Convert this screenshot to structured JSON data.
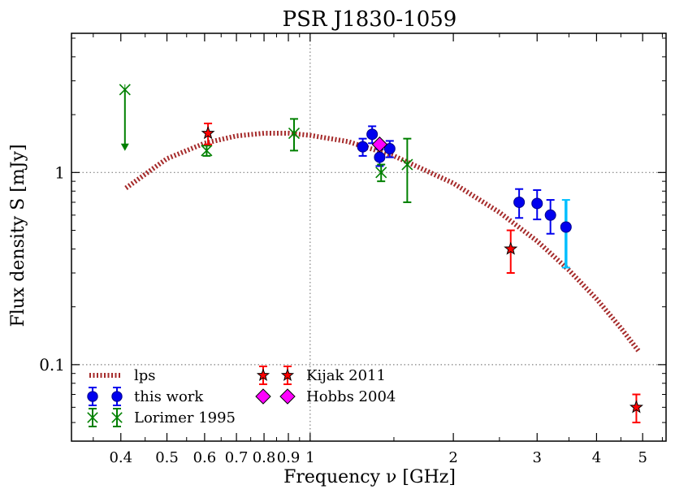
{
  "chart_data": {
    "type": "scatter",
    "title": "PSR J1830-1059",
    "xlabel": "Frequency ν [GHz]",
    "ylabel": "Flux density S [mJy]",
    "xscale": "log",
    "yscale": "log",
    "xlim": [
      0.315,
      5.6
    ],
    "ylim": [
      0.04,
      5.3
    ],
    "x_ticks": [
      {
        "value": 0.4,
        "label": "0.4"
      },
      {
        "value": 0.5,
        "label": "0.5"
      },
      {
        "value": 0.6,
        "label": "0.6"
      },
      {
        "value": 0.7,
        "label": "0.7"
      },
      {
        "value": 0.8,
        "label": "0.8"
      },
      {
        "value": 0.9,
        "label": "0.9"
      },
      {
        "value": 1,
        "label": "1"
      },
      {
        "value": 2,
        "label": "2"
      },
      {
        "value": 3,
        "label": "3"
      },
      {
        "value": 4,
        "label": "4"
      },
      {
        "value": 5,
        "label": "5"
      }
    ],
    "y_ticks": [
      {
        "value": 0.1,
        "label": "0.1"
      },
      {
        "value": 1,
        "label": "1"
      }
    ],
    "reference_lines": {
      "x": 1,
      "y": [
        0.1,
        1
      ]
    },
    "fit_curve": {
      "name": "lps",
      "color": "#a52a2a",
      "x": [
        0.41,
        0.5,
        0.6,
        0.7,
        0.8,
        0.9,
        1.0,
        1.2,
        1.5,
        2.0,
        2.5,
        3.0,
        3.5,
        4.0,
        4.5,
        4.9
      ],
      "y": [
        0.83,
        1.18,
        1.42,
        1.55,
        1.6,
        1.6,
        1.56,
        1.45,
        1.22,
        0.88,
        0.62,
        0.44,
        0.31,
        0.22,
        0.155,
        0.118
      ]
    },
    "series": [
      {
        "name": "this work",
        "marker": "circle",
        "color": "#0000ee",
        "points": [
          {
            "x": 1.29,
            "y": 1.36,
            "lo": 1.22,
            "hi": 1.5
          },
          {
            "x": 1.35,
            "y": 1.58,
            "lo": 1.42,
            "hi": 1.74
          },
          {
            "x": 1.4,
            "y": 1.2,
            "lo": 1.08,
            "hi": 1.32
          },
          {
            "x": 1.47,
            "y": 1.33,
            "lo": 1.2,
            "hi": 1.46
          },
          {
            "x": 2.75,
            "y": 0.7,
            "lo": 0.58,
            "hi": 0.82
          },
          {
            "x": 3.0,
            "y": 0.69,
            "lo": 0.57,
            "hi": 0.81
          },
          {
            "x": 3.2,
            "y": 0.6,
            "lo": 0.48,
            "hi": 0.72
          },
          {
            "x": 3.45,
            "y": 0.52,
            "lo": 0.32,
            "hi": 0.72,
            "err_color": "#00bfff"
          }
        ]
      },
      {
        "name": "Lorimer 1995",
        "marker": "x",
        "color": "#008000",
        "points": [
          {
            "x": 0.408,
            "y": 2.7,
            "upper_limit": true,
            "arrow_to": 1.32
          },
          {
            "x": 0.606,
            "y": 1.3,
            "lo": 1.22,
            "hi": 1.38
          },
          {
            "x": 0.925,
            "y": 1.6,
            "lo": 1.3,
            "hi": 1.9
          },
          {
            "x": 1.41,
            "y": 1.0,
            "lo": 0.9,
            "hi": 1.1
          },
          {
            "x": 1.6,
            "y": 1.1,
            "lo": 0.7,
            "hi": 1.5
          }
        ]
      },
      {
        "name": "Kijak 2011",
        "marker": "star",
        "color": "#ff0000",
        "points": [
          {
            "x": 0.61,
            "y": 1.6,
            "lo": 1.4,
            "hi": 1.8
          },
          {
            "x": 2.64,
            "y": 0.4,
            "lo": 0.3,
            "hi": 0.5
          },
          {
            "x": 4.85,
            "y": 0.06,
            "lo": 0.05,
            "hi": 0.07
          }
        ]
      },
      {
        "name": "Hobbs 2004",
        "marker": "diamond",
        "color": "#ff00ff",
        "points": [
          {
            "x": 1.4,
            "y": 1.4
          }
        ]
      }
    ],
    "legend": {
      "placement": "lower-left",
      "entries": [
        "lps",
        "this work",
        "Lorimer 1995",
        "Kijak 2011",
        "Hobbs 2004"
      ]
    }
  }
}
